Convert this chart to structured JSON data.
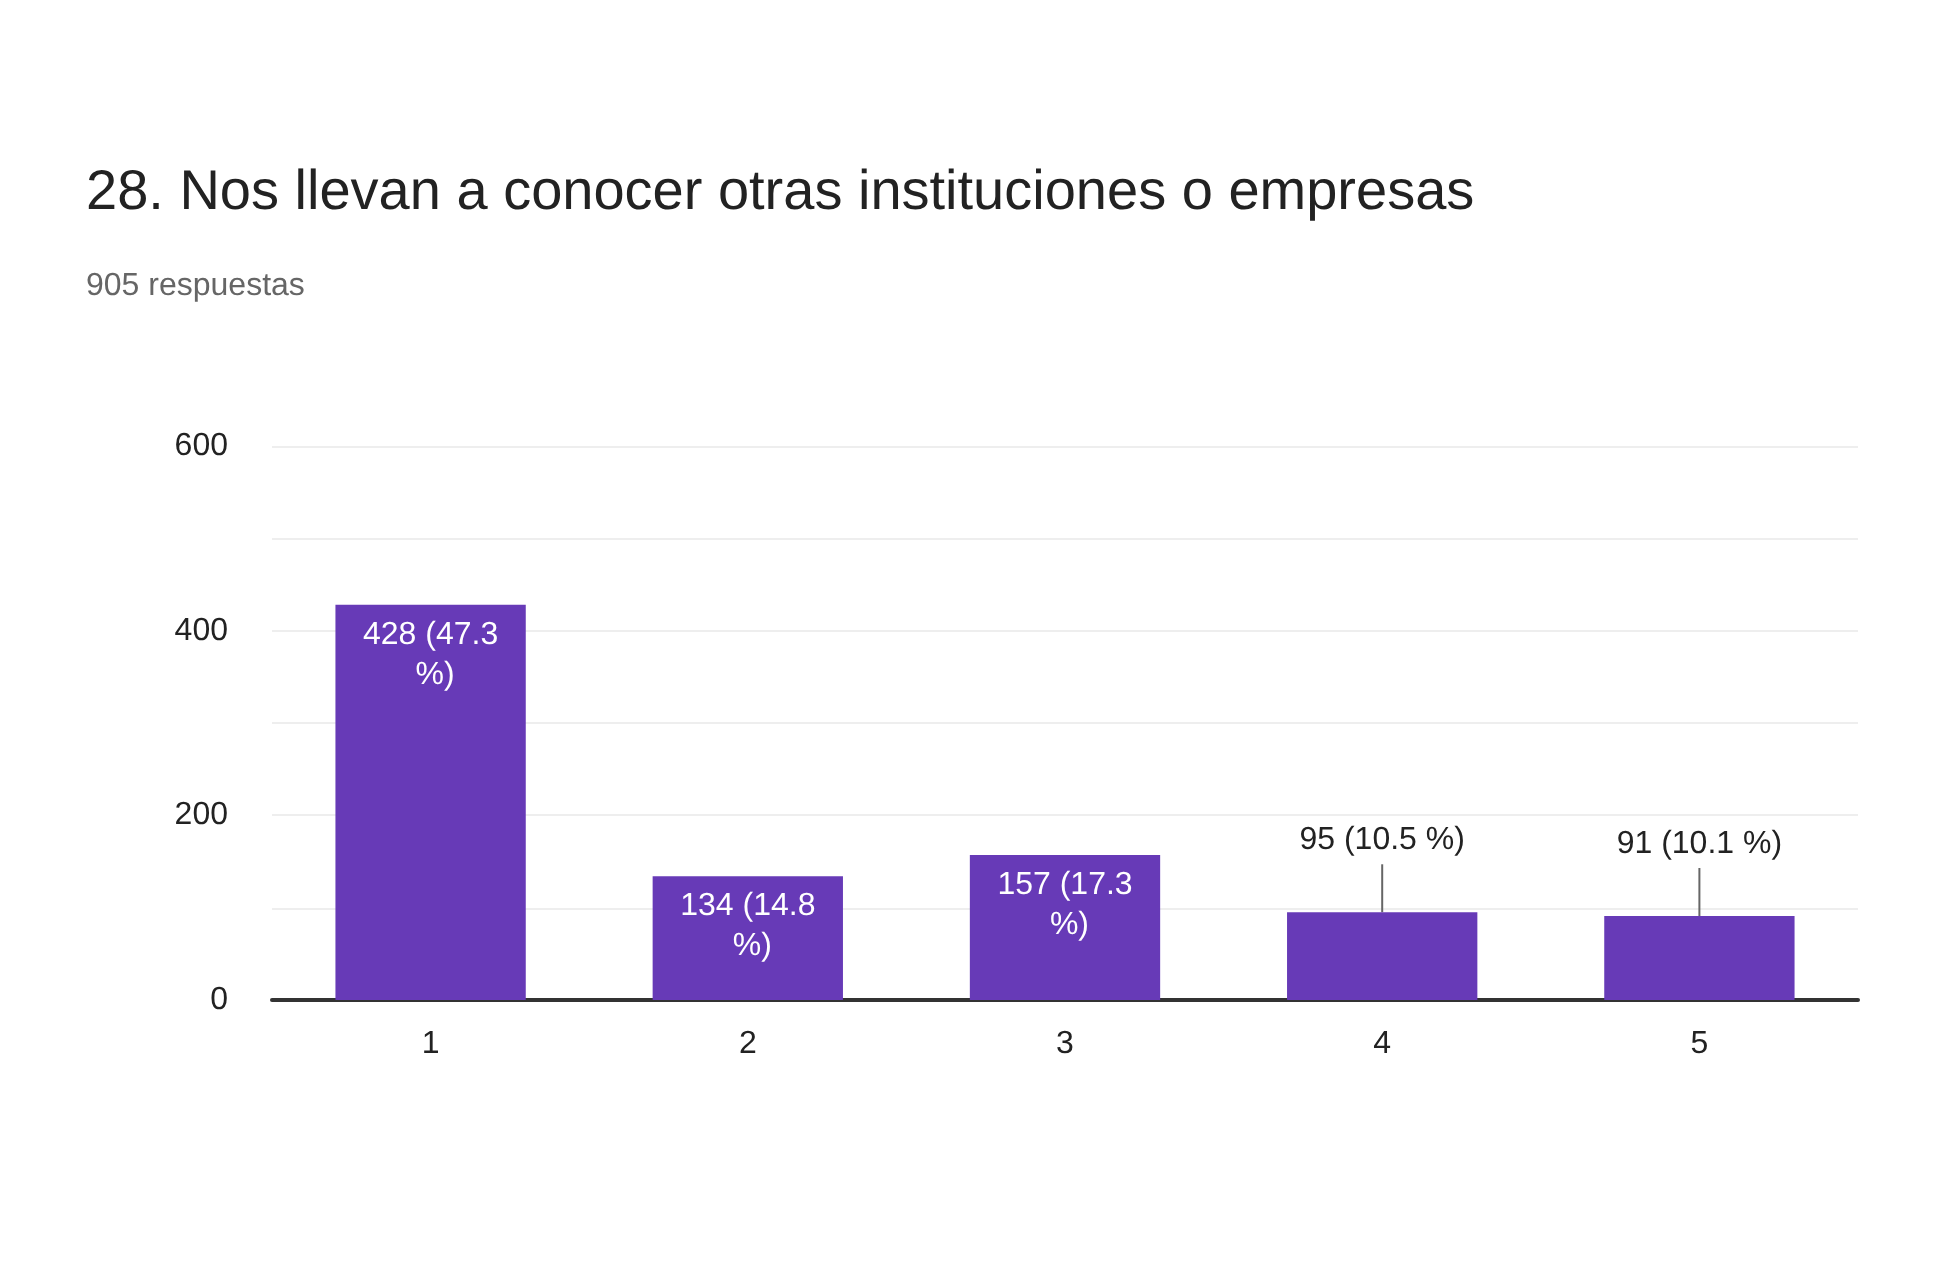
{
  "chart_data": {
    "type": "bar",
    "title": "28. Nos llevan a conocer otras instituciones o empresas",
    "subtitle": "905 respuestas",
    "categories": [
      "1",
      "2",
      "3",
      "4",
      "5"
    ],
    "values": [
      428,
      134,
      157,
      95,
      91
    ],
    "value_labels": [
      "428 (47.3 %)",
      "134 (14.8 %)",
      "157 (17.3 %)",
      "95 (10.5 %)",
      "91 (10.1 %)"
    ],
    "color": "#673ab7",
    "ylim": [
      0,
      600
    ],
    "yticks": [
      0,
      {
        "value": 100,
        "label": null
      },
      200,
      {
        "value": 300,
        "label": null
      },
      400,
      {
        "value": 500,
        "label": null
      },
      600
    ],
    "grid": true
  }
}
